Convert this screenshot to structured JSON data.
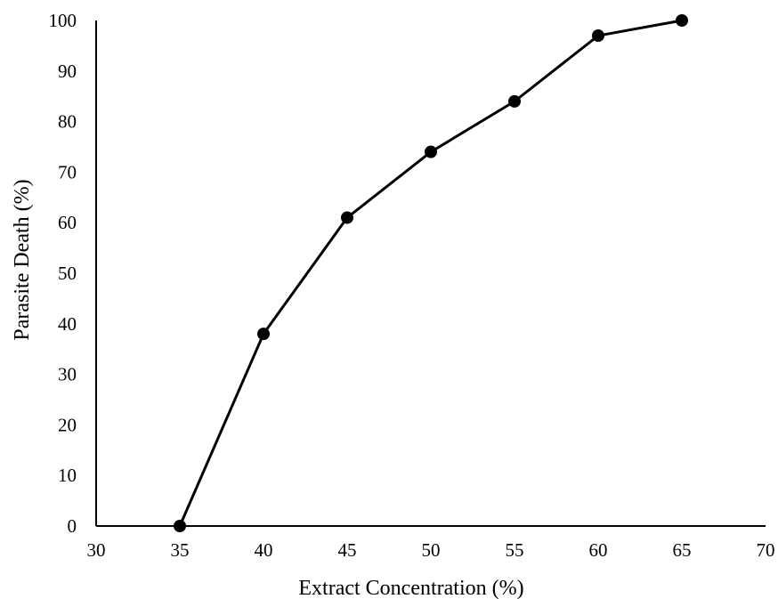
{
  "chart_data": {
    "type": "line",
    "title": "",
    "xlabel": "Extract Concentration (%)",
    "ylabel": "Parasite Death (%)",
    "xlim": [
      30,
      70
    ],
    "ylim": [
      0,
      100
    ],
    "xticks": [
      30,
      35,
      40,
      45,
      50,
      55,
      60,
      65,
      70
    ],
    "yticks": [
      0,
      10,
      20,
      30,
      40,
      50,
      60,
      70,
      80,
      90,
      100
    ],
    "grid": false,
    "legend": "none",
    "series": [
      {
        "x": [
          35,
          40,
          45,
          50,
          55,
          60,
          65
        ],
        "y": [
          0,
          38,
          61,
          74,
          84,
          97,
          100
        ],
        "color": "#000000",
        "marker": "circle"
      }
    ]
  }
}
